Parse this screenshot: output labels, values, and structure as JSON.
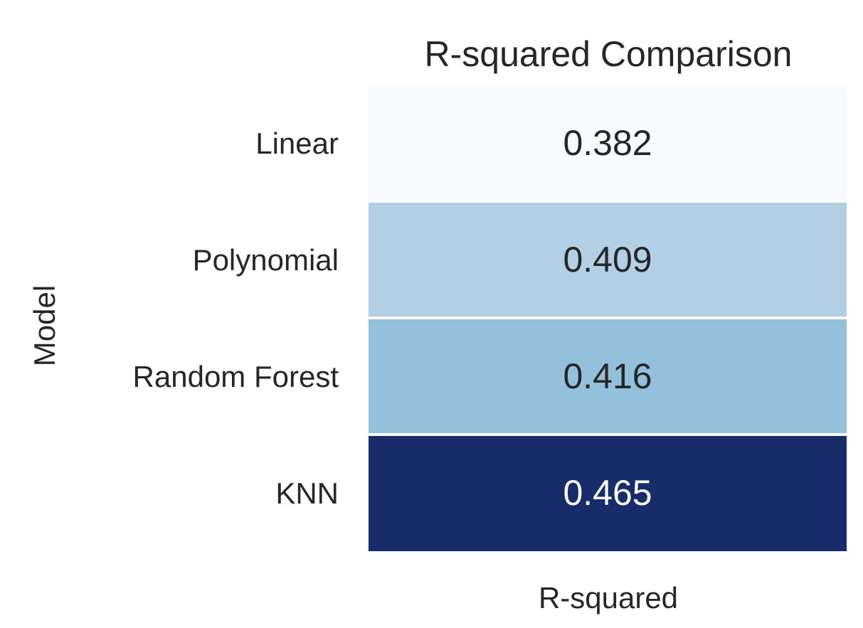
{
  "chart_data": {
    "type": "heatmap",
    "title": "R-squared Comparison",
    "xlabel": "R-squared",
    "ylabel": "Model",
    "columns": [
      "R-squared"
    ],
    "rows": [
      "Linear",
      "Polynomial",
      "Random Forest",
      "KNN"
    ],
    "values": [
      0.382,
      0.409,
      0.416,
      0.465
    ],
    "value_labels": [
      "0.382",
      "0.409",
      "0.416",
      "0.465"
    ],
    "colormap": "Blues",
    "cell_colors": [
      "#f7fbff",
      "#b3cfe6",
      "#93c1dc",
      "#182b6a"
    ],
    "text_colors": [
      "#262626",
      "#262626",
      "#262626",
      "#ffffff"
    ],
    "colorbar": false,
    "grid": false
  }
}
